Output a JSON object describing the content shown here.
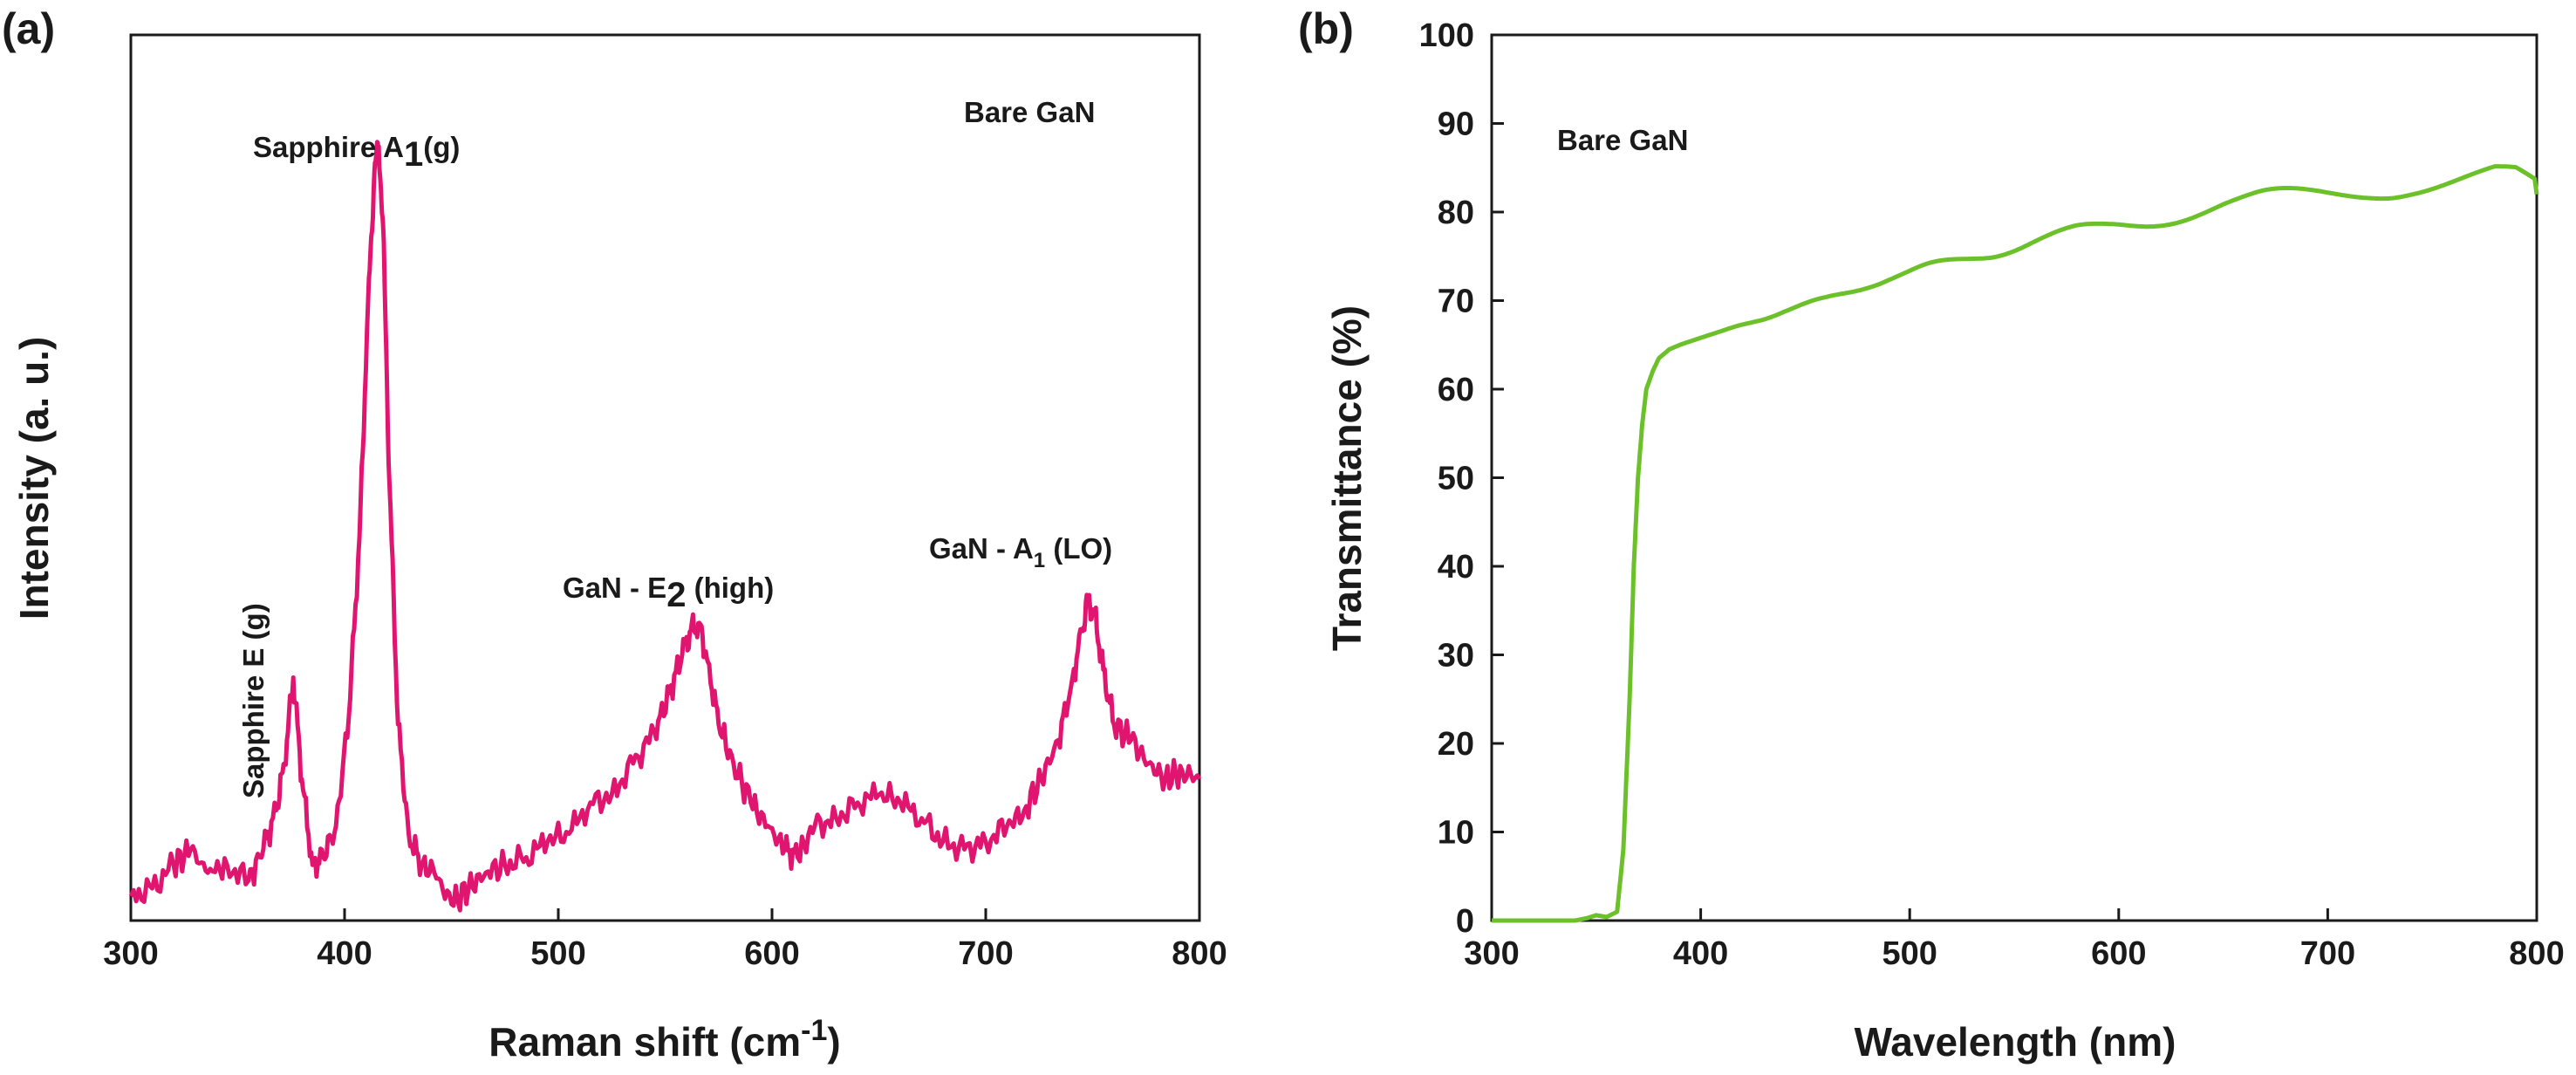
{
  "chart_data": [
    {
      "panel_label": "(a)",
      "type": "line",
      "annotation_top": "Bare GaN",
      "xlabel": "Raman shift (cm",
      "xlabel_sup": "-1",
      "xlabel_close": ")",
      "ylabel": "Intensity (a. u.)",
      "xlim": [
        300,
        800
      ],
      "xticks": [
        "300",
        "400",
        "500",
        "600",
        "700",
        "800"
      ],
      "y_tick_labels": "none",
      "peak_labels": {
        "sapphire_a1g": {
          "pre": "Sapphire A",
          "sub": "1",
          "post": "(g)",
          "x": 417
        },
        "sapphire_eg": {
          "text": "Sapphire E (g)",
          "x": 378
        },
        "gan_e2": {
          "pre": "GaN - E",
          "sub": "2",
          "post": " (high)",
          "x": 568
        },
        "gan_a1": {
          "pre": "GaN - A",
          "sub": "1",
          "post": " (LO)",
          "x": 749
        }
      },
      "series": [
        {
          "color": "#e0156f",
          "x": [
            300,
            310,
            320,
            328,
            336,
            345,
            355,
            362,
            368,
            372,
            376,
            380,
            385,
            390,
            396,
            402,
            407,
            411,
            414,
            416,
            418,
            421,
            425,
            430,
            436,
            442,
            450,
            458,
            466,
            475,
            485,
            495,
            505,
            515,
            525,
            535,
            545,
            552,
            558,
            562,
            566,
            570,
            575,
            582,
            590,
            598,
            606,
            612,
            620,
            630,
            640,
            650,
            660,
            670,
            680,
            690,
            700,
            710,
            718,
            726,
            734,
            740,
            745,
            748,
            751,
            755,
            760,
            768,
            776,
            784,
            792,
            800
          ],
          "y": [
            0.02,
            0.03,
            0.06,
            0.08,
            0.05,
            0.06,
            0.04,
            0.08,
            0.13,
            0.19,
            0.3,
            0.17,
            0.06,
            0.07,
            0.11,
            0.25,
            0.48,
            0.78,
            0.95,
            0.98,
            0.88,
            0.55,
            0.24,
            0.1,
            0.06,
            0.05,
            0.01,
            0.03,
            0.05,
            0.06,
            0.07,
            0.09,
            0.1,
            0.14,
            0.15,
            0.19,
            0.23,
            0.28,
            0.33,
            0.36,
            0.37,
            0.32,
            0.24,
            0.19,
            0.14,
            0.11,
            0.08,
            0.07,
            0.11,
            0.12,
            0.14,
            0.15,
            0.14,
            0.12,
            0.09,
            0.08,
            0.09,
            0.11,
            0.13,
            0.17,
            0.22,
            0.29,
            0.36,
            0.4,
            0.38,
            0.31,
            0.24,
            0.22,
            0.19,
            0.17,
            0.18,
            0.17
          ]
        }
      ]
    },
    {
      "panel_label": "(b)",
      "type": "line",
      "annotation_top": "Bare GaN",
      "xlabel": "Wavelength (nm)",
      "ylabel": "Transmittance (%)",
      "xlim": [
        300,
        800
      ],
      "ylim": [
        0,
        100
      ],
      "xticks": [
        "300",
        "400",
        "500",
        "600",
        "700",
        "800"
      ],
      "yticks": [
        "0",
        "10",
        "20",
        "30",
        "40",
        "50",
        "60",
        "70",
        "80",
        "90",
        "100"
      ],
      "series": [
        {
          "color": "#6cc12a",
          "x": [
            300,
            320,
            340,
            346,
            350,
            355,
            360,
            363,
            366,
            368,
            370,
            372,
            374,
            377,
            380,
            385,
            390,
            400,
            410,
            420,
            430,
            440,
            450,
            460,
            470,
            480,
            490,
            500,
            510,
            520,
            530,
            540,
            550,
            560,
            570,
            580,
            590,
            600,
            610,
            620,
            630,
            640,
            650,
            660,
            670,
            680,
            690,
            700,
            710,
            720,
            730,
            740,
            750,
            760,
            770,
            780,
            790,
            800
          ],
          "y": [
            0.0,
            0.0,
            0.0,
            0.3,
            0.6,
            0.4,
            1.0,
            8.0,
            25.0,
            40.0,
            50.0,
            56.0,
            60.0,
            62.0,
            63.5,
            64.5,
            65.0,
            65.8,
            66.5,
            67.3,
            68.0,
            68.8,
            69.5,
            70.2,
            71.0,
            71.8,
            72.5,
            73.1,
            73.8,
            74.4,
            75.0,
            75.5,
            76.1,
            76.7,
            77.2,
            77.7,
            78.1,
            78.6,
            79.0,
            79.4,
            79.8,
            80.2,
            80.6,
            80.9,
            81.3,
            81.6,
            81.9,
            82.2,
            82.5,
            82.8,
            83.0,
            83.3,
            83.5,
            83.7,
            83.9,
            84.1,
            83.6,
            82.0
          ]
        }
      ]
    }
  ]
}
